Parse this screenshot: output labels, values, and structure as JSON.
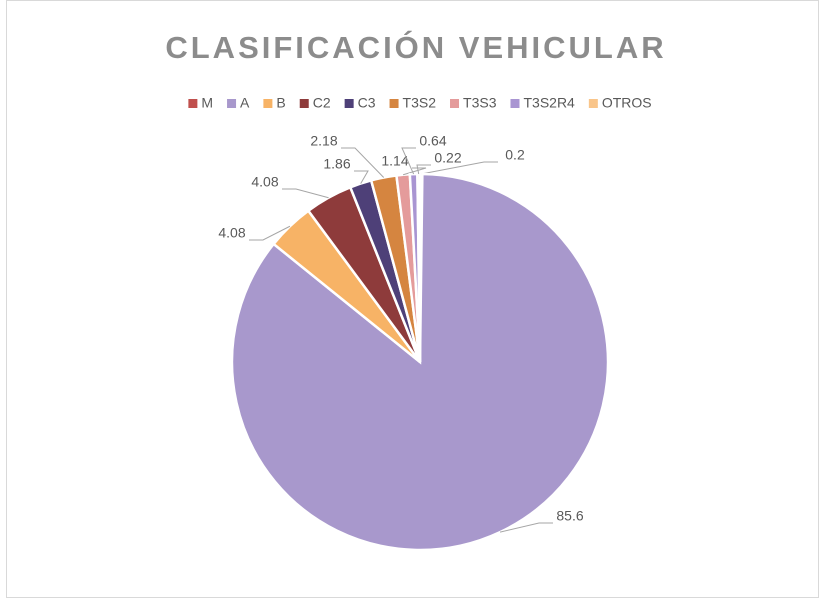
{
  "chart_data": {
    "type": "pie",
    "title": "CLASIFICACIÓN VEHICULAR",
    "categories": [
      "M",
      "A",
      "B",
      "C2",
      "C3",
      "T3S2",
      "T3S3",
      "T3S2R4",
      "OTROS"
    ],
    "values": [
      0.2,
      85.6,
      4.08,
      4.08,
      1.86,
      2.18,
      1.14,
      0.64,
      0.22
    ],
    "colors": [
      "#c0504d",
      "#a898cc",
      "#f7b366",
      "#8e3b3b",
      "#4e4078",
      "#d58540",
      "#e49b9b",
      "#a995d2",
      "#f9c58a"
    ],
    "legend": "top"
  }
}
